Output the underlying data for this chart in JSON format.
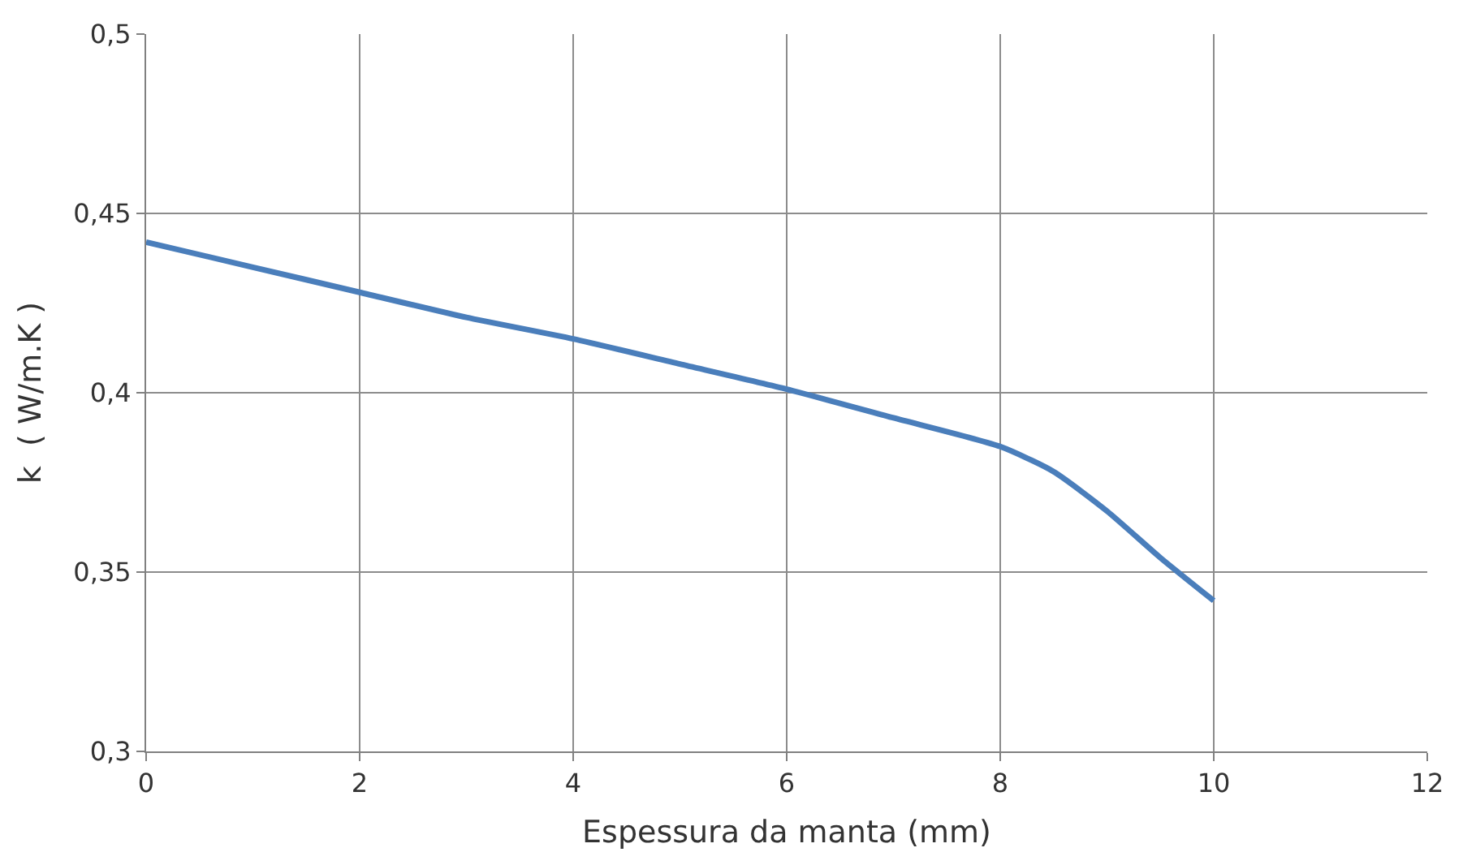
{
  "chart_data": {
    "type": "line",
    "xlabel": "Espessura da manta (mm)",
    "ylabel": "k  ( W/m.K )",
    "x": [
      0,
      1,
      2,
      3,
      4,
      5,
      6,
      7,
      8,
      8.5,
      9,
      9.5,
      10
    ],
    "series": [
      {
        "color": "#4a7ebb",
        "values": [
          0.442,
          0.435,
          0.428,
          0.421,
          0.415,
          0.408,
          0.401,
          0.393,
          0.385,
          0.378,
          0.367,
          0.354,
          0.342
        ]
      }
    ],
    "xlim": [
      0,
      12
    ],
    "xticks": [
      0,
      2,
      4,
      6,
      8,
      10,
      12
    ],
    "ylim": [
      0.3,
      0.5
    ],
    "yticks": [
      {
        "value": 0.3,
        "label": "0,3"
      },
      {
        "value": 0.35,
        "label": "0,35"
      },
      {
        "value": 0.4,
        "label": "0,4"
      },
      {
        "value": 0.45,
        "label": "0,45"
      },
      {
        "value": 0.5,
        "label": "0,5"
      }
    ],
    "grid": true,
    "legend": false,
    "marker": "none",
    "line_style": "solid"
  }
}
